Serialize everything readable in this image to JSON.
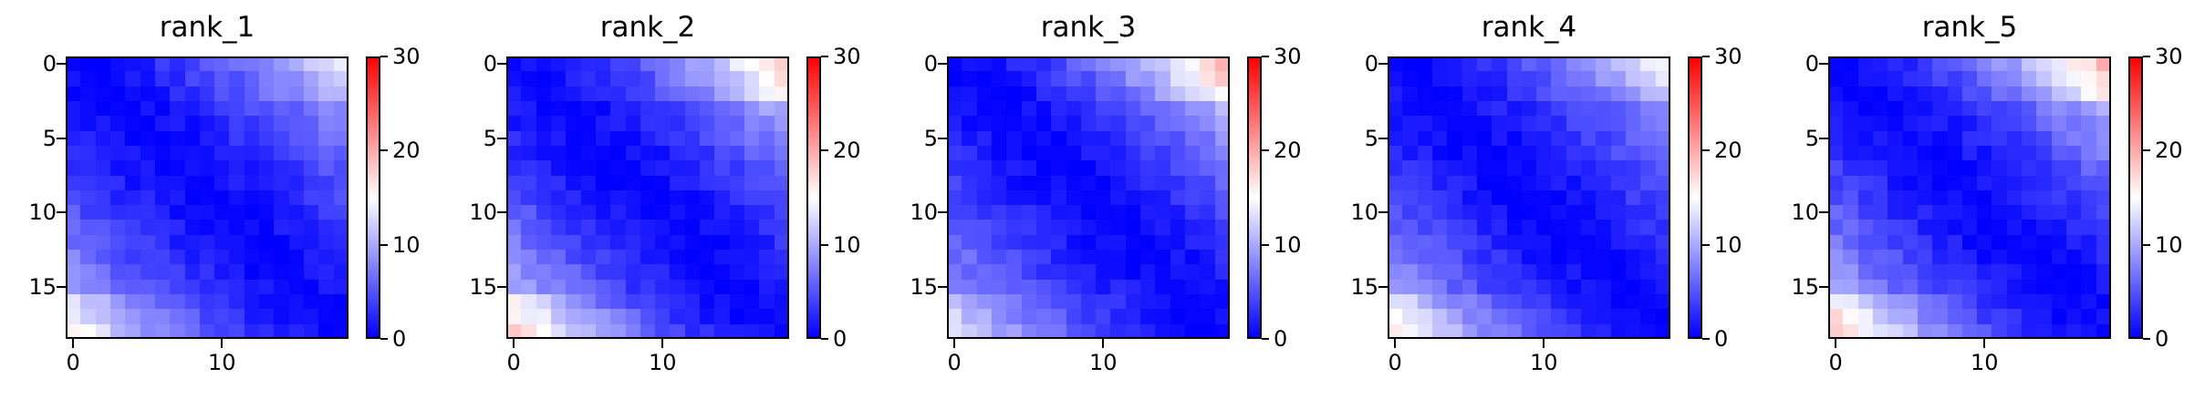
{
  "chart_data": [
    {
      "type": "heatmap",
      "title": "rank_1",
      "colorbar": {
        "min": 0,
        "max": 30,
        "ticks": [
          "0",
          "10",
          "20",
          "30"
        ],
        "colormap": "bwr"
      },
      "yticks": [
        "0",
        "5",
        "10",
        "15"
      ],
      "xticks": [
        "0",
        "10"
      ],
      "matrix_size": 19,
      "diagonal_value": 0,
      "top_right_max": 13,
      "bottom_left_max": 15
    },
    {
      "type": "heatmap",
      "title": "rank_2",
      "colorbar": {
        "min": 0,
        "max": 30,
        "ticks": [
          "0",
          "10",
          "20",
          "30"
        ],
        "colormap": "bwr"
      },
      "yticks": [
        "0",
        "5",
        "10",
        "15"
      ],
      "xticks": [
        "0",
        "10"
      ],
      "matrix_size": 19,
      "diagonal_value": 0,
      "top_right_max": 18,
      "bottom_left_max": 18
    },
    {
      "type": "heatmap",
      "title": "rank_3",
      "colorbar": {
        "min": 0,
        "max": 30,
        "ticks": [
          "0",
          "10",
          "20",
          "30"
        ],
        "colormap": "bwr"
      },
      "yticks": [
        "0",
        "5",
        "10",
        "15"
      ],
      "xticks": [
        "0",
        "10"
      ],
      "matrix_size": 19,
      "diagonal_value": 0,
      "top_right_max": 19,
      "bottom_left_max": 13
    },
    {
      "type": "heatmap",
      "title": "rank_4",
      "colorbar": {
        "min": 0,
        "max": 30,
        "ticks": [
          "0",
          "10",
          "20",
          "30"
        ],
        "colormap": "bwr"
      },
      "yticks": [
        "0",
        "5",
        "10",
        "15"
      ],
      "xticks": [
        "0",
        "10"
      ],
      "matrix_size": 19,
      "diagonal_value": 0,
      "top_right_max": 14,
      "bottom_left_max": 16
    },
    {
      "type": "heatmap",
      "title": "rank_5",
      "colorbar": {
        "min": 0,
        "max": 30,
        "ticks": [
          "0",
          "10",
          "20",
          "30"
        ],
        "colormap": "bwr"
      },
      "yticks": [
        "0",
        "5",
        "10",
        "15"
      ],
      "xticks": [
        "0",
        "10"
      ],
      "matrix_size": 19,
      "diagonal_value": 0,
      "top_right_max": 19,
      "bottom_left_max": 18
    }
  ],
  "colors": {
    "low": "#0000ff",
    "mid": "#ffffff",
    "high": "#ff0000"
  }
}
